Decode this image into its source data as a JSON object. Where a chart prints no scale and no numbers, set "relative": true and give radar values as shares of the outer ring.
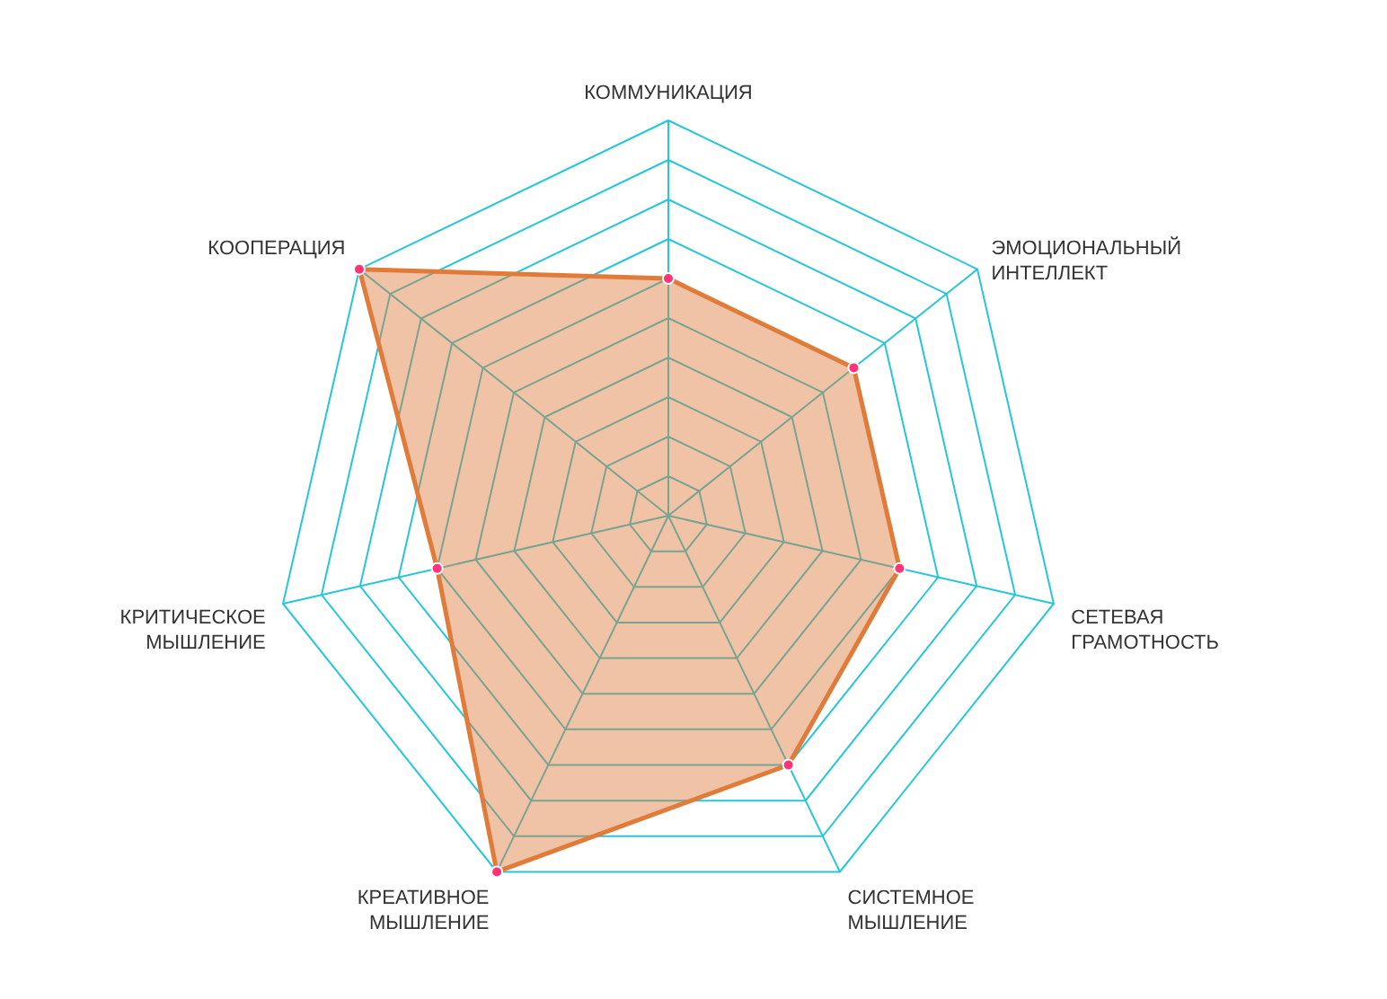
{
  "chart_data": {
    "type": "radar",
    "categories": [
      "КОММУНИКАЦИЯ",
      "ЭМОЦИОНАЛЬНЫЙ ИНТЕЛЛЕКТ",
      "СЕТЕВАЯ ГРАМОТНОСТЬ",
      "СИСТЕМНОЕ МЫШЛЕНИЕ",
      "КРЕАТИВНОЕ МЫШЛЕНИЕ",
      "КРИТИЧЕСКОЕ МЫШЛЕНИЕ",
      "КООПЕРАЦИЯ"
    ],
    "relative": true,
    "grid": true,
    "marker": "circle",
    "series": [
      {
        "color": "#e07b39",
        "values": [
          0.6,
          0.6,
          0.6,
          0.7,
          1.0,
          0.6,
          1.0
        ]
      }
    ]
  }
}
